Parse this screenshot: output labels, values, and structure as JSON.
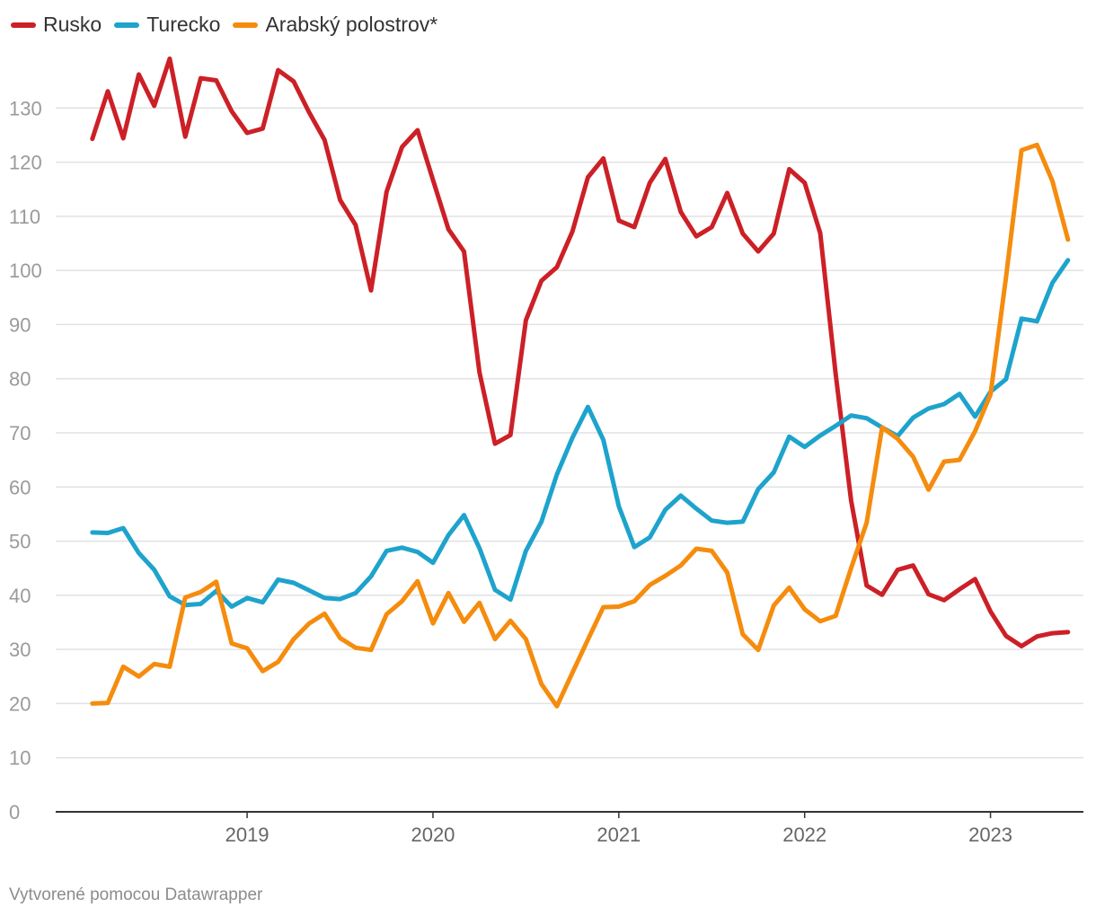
{
  "chart_data": {
    "type": "line",
    "title": "",
    "xlabel": "",
    "ylabel": "",
    "ylim": [
      0,
      140
    ],
    "yticks": [
      0,
      10,
      20,
      30,
      40,
      50,
      60,
      70,
      80,
      90,
      100,
      110,
      120,
      130
    ],
    "x_start": 2018.167,
    "x_step": 0.08333,
    "xlim": [
      2017.97,
      2023.5
    ],
    "xticks": [
      {
        "label": "2019",
        "value": 2019
      },
      {
        "label": "2020",
        "value": 2020
      },
      {
        "label": "2021",
        "value": 2021
      },
      {
        "label": "2022",
        "value": 2022
      },
      {
        "label": "2023",
        "value": 2023
      }
    ],
    "series": [
      {
        "name": "Rusko",
        "color": "#cc2027",
        "values": [
          124.3,
          133.1,
          124.4,
          136.2,
          130.4,
          139.1,
          124.7,
          135.5,
          135.1,
          129.4,
          125.4,
          126.2,
          137.0,
          134.9,
          129.2,
          124.1,
          113.0,
          108.4,
          96.3,
          114.5,
          122.8,
          125.9,
          116.7,
          107.6,
          103.5,
          81.2,
          68.0,
          69.6,
          90.8,
          98.1,
          100.6,
          107.2,
          117.2,
          120.7,
          109.2,
          108.0,
          116.2,
          120.6,
          110.8,
          106.3,
          108.0,
          114.3,
          106.8,
          103.5,
          106.8,
          118.7,
          116.2,
          106.9,
          80.9,
          57.5,
          41.8,
          40.1,
          44.7,
          45.5,
          40.2,
          39.1,
          41.1,
          43.0,
          37.0,
          32.5,
          30.6,
          32.4,
          33.0,
          33.2
        ]
      },
      {
        "name": "Turecko",
        "color": "#1ea3cc",
        "values": [
          51.6,
          51.5,
          52.4,
          47.8,
          44.7,
          39.8,
          38.2,
          38.4,
          40.8,
          37.9,
          39.5,
          38.7,
          42.9,
          42.3,
          40.9,
          39.5,
          39.3,
          40.4,
          43.5,
          48.2,
          48.8,
          48.0,
          46.0,
          51.1,
          54.8,
          48.7,
          41.0,
          39.2,
          48.2,
          53.6,
          62.3,
          69.1,
          74.8,
          68.7,
          56.4,
          48.9,
          50.7,
          55.8,
          58.4,
          56.0,
          53.8,
          53.4,
          53.6,
          59.6,
          62.7,
          69.3,
          67.4,
          69.5,
          71.3,
          73.2,
          72.7,
          71.0,
          69.4,
          72.8,
          74.5,
          75.3,
          77.2,
          73.0,
          77.6,
          79.9,
          91.1,
          90.6,
          97.7,
          101.9
        ]
      },
      {
        "name": "Arabský polostrov*",
        "color": "#f58c0e",
        "values": [
          20.0,
          20.1,
          26.8,
          25.0,
          27.3,
          26.8,
          39.6,
          40.6,
          42.5,
          31.1,
          30.2,
          26.0,
          27.7,
          31.9,
          34.8,
          36.6,
          32.1,
          30.3,
          29.9,
          36.5,
          38.9,
          42.6,
          34.8,
          40.4,
          35.1,
          38.6,
          31.9,
          35.3,
          31.9,
          23.6,
          19.5,
          25.7,
          31.8,
          37.8,
          37.9,
          38.9,
          41.9,
          43.6,
          45.5,
          48.6,
          48.2,
          44.2,
          32.8,
          29.9,
          38.1,
          41.4,
          37.4,
          35.2,
          36.2,
          45.0,
          53.4,
          71.0,
          68.9,
          65.6,
          59.5,
          64.7,
          65.0,
          70.3,
          77.1,
          98.7,
          122.2,
          123.2,
          116.5,
          105.7
        ]
      }
    ]
  },
  "credit": "Vytvorené pomocou Datawrapper"
}
